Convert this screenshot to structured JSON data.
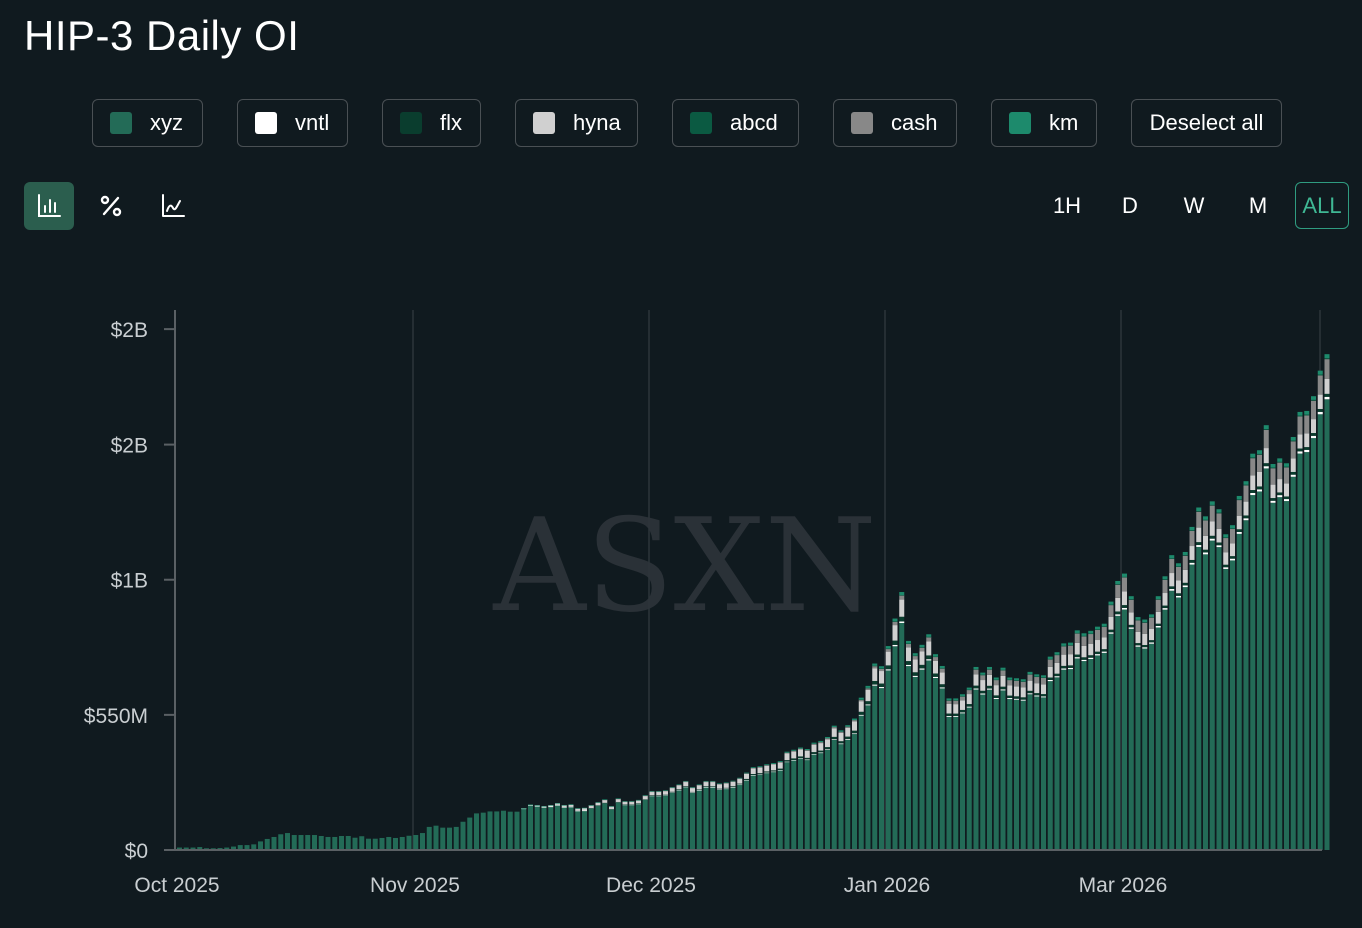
{
  "title": "HIP-3 Daily OI",
  "legend": [
    {
      "label": "xyz",
      "color": "#236b57"
    },
    {
      "label": "vntl",
      "color": "#ffffff"
    },
    {
      "label": "flx",
      "color": "#0a3d2e"
    },
    {
      "label": "hyna",
      "color": "#d0d0d0"
    },
    {
      "label": "abcd",
      "color": "#0b5a42"
    },
    {
      "label": "cash",
      "color": "#888888"
    },
    {
      "label": "km",
      "color": "#1d8a6c"
    }
  ],
  "deselect_label": "Deselect all",
  "view_modes": [
    "bar-chart-icon",
    "percent-icon",
    "line-chart-icon"
  ],
  "timeframes": [
    "1H",
    "D",
    "W",
    "M",
    "ALL"
  ],
  "active_timeframe": "ALL",
  "watermark": "ASXN",
  "chart_data": {
    "type": "bar",
    "stacked": true,
    "title": "HIP-3 Daily OI",
    "xlabel": "",
    "ylabel": "",
    "unit": "USD millions",
    "y_ticks": [
      {
        "value": 0,
        "label": "$0"
      },
      {
        "value": 550,
        "label": "$550M"
      },
      {
        "value": 1100,
        "label": "$1B"
      },
      {
        "value": 1650,
        "label": "$2B"
      },
      {
        "value": 2120,
        "label": "$2B"
      }
    ],
    "ylim": [
      0,
      2200
    ],
    "x_ticks": [
      {
        "bar": 0,
        "label": "Oct 2025"
      },
      {
        "bar": 35,
        "label": "Nov 2025"
      },
      {
        "bar": 70,
        "label": "Dec 2025"
      },
      {
        "bar": 105,
        "label": "Jan 2026"
      },
      {
        "bar": 140,
        "label": "Mar 2026"
      }
    ],
    "totals": [
      10,
      10,
      10,
      12,
      7,
      7,
      8,
      10,
      14,
      20,
      20,
      23,
      35,
      45,
      53,
      64,
      69,
      61,
      61,
      61,
      61,
      57,
      53,
      53,
      57,
      57,
      50,
      56,
      46,
      46,
      49,
      53,
      49,
      53,
      58,
      61,
      69,
      94,
      99,
      91,
      91,
      94,
      115,
      132,
      149,
      152,
      157,
      157,
      160,
      156,
      156,
      170,
      185,
      183,
      179,
      183,
      191,
      183,
      186,
      170,
      172,
      183,
      195,
      206,
      179,
      210,
      199,
      199,
      204,
      223,
      240,
      240,
      243,
      256,
      267,
      281,
      256,
      267,
      281,
      281,
      271,
      275,
      282,
      294,
      315,
      337,
      341,
      349,
      354,
      362,
      400,
      408,
      417,
      411,
      437,
      444,
      460,
      506,
      487,
      508,
      535,
      620,
      668,
      759,
      748,
      830,
      942,
      1050,
      851,
      801,
      835,
      878,
      797,
      749,
      617,
      617,
      634,
      661,
      745,
      722,
      745,
      702,
      742,
      702,
      699,
      695,
      725,
      715,
      711,
      787,
      805,
      841,
      844,
      894,
      882,
      892,
      909,
      921,
      1011,
      1095,
      1125,
      1033,
      948,
      938,
      959,
      1033,
      1114,
      1200,
      1167,
      1213,
      1315,
      1394,
      1358,
      1419,
      1387,
      1285,
      1322,
      1441,
      1501,
      1613,
      1627,
      1729,
      1571,
      1594,
      1574,
      1681,
      1783,
      1787,
      1847,
      1951,
      2018
    ],
    "share_keyframes": [
      {
        "bar": 0,
        "vntl": 0,
        "flx": 0,
        "hyna": 0,
        "abcd": 0,
        "cash": 0,
        "km": 0
      },
      {
        "bar": 50,
        "vntl": 0,
        "flx": 0,
        "hyna": 0,
        "abcd": 0,
        "cash": 0,
        "km": 0
      },
      {
        "bar": 60,
        "vntl": 0.006,
        "flx": 0,
        "hyna": 0.06,
        "abcd": 0,
        "cash": 0,
        "km": 0.006
      },
      {
        "bar": 100,
        "vntl": 0.006,
        "flx": 0.02,
        "hyna": 0.07,
        "abcd": 0,
        "cash": 0.01,
        "km": 0.012
      },
      {
        "bar": 140,
        "vntl": 0.006,
        "flx": 0.01,
        "hyna": 0.05,
        "abcd": 0.002,
        "cash": 0.05,
        "km": 0.012
      },
      {
        "bar": 169,
        "vntl": 0.005,
        "flx": 0.006,
        "hyna": 0.03,
        "abcd": 0.002,
        "cash": 0.04,
        "km": 0.008
      }
    ]
  }
}
